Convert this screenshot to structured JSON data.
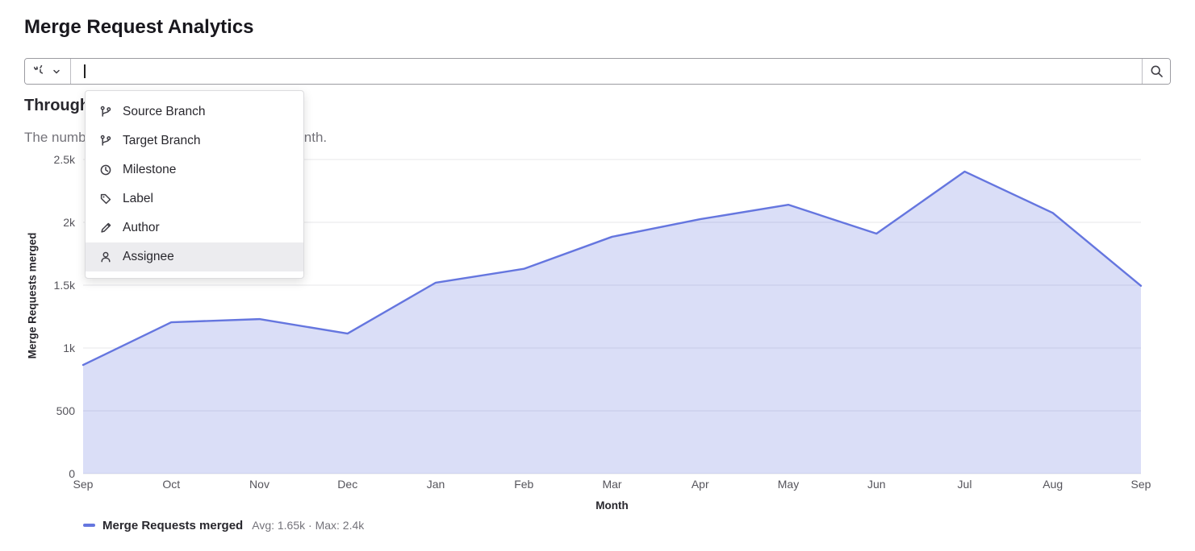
{
  "page": {
    "title": "Merge Request Analytics"
  },
  "filter_bar": {
    "input_value": "",
    "input_placeholder": "",
    "icons": {
      "history": "history-icon",
      "chevron": "chevron-down-icon",
      "search": "search-icon"
    }
  },
  "filter_dropdown": {
    "items": [
      {
        "label": "Source Branch",
        "icon": "branch-icon",
        "highlighted": false
      },
      {
        "label": "Target Branch",
        "icon": "branch-icon",
        "highlighted": false
      },
      {
        "label": "Milestone",
        "icon": "clock-icon",
        "highlighted": false
      },
      {
        "label": "Label",
        "icon": "label-icon",
        "highlighted": false
      },
      {
        "label": "Author",
        "icon": "pencil-icon",
        "highlighted": false
      },
      {
        "label": "Assignee",
        "icon": "user-icon",
        "highlighted": true
      }
    ]
  },
  "section": {
    "heading": "Throughput",
    "description": "The number of merge requests merged by month."
  },
  "chart_data": {
    "type": "area",
    "title": "Throughput",
    "x": [
      "Sep",
      "Oct",
      "Nov",
      "Dec",
      "Jan",
      "Feb",
      "Mar",
      "Apr",
      "May",
      "Jun",
      "Jul",
      "Aug",
      "Sep"
    ],
    "series": [
      {
        "name": "Merge Requests merged",
        "values": [
          865,
          1205,
          1230,
          1115,
          1520,
          1630,
          1885,
          2025,
          2140,
          1910,
          2404,
          2075,
          1495
        ]
      }
    ],
    "xlabel": "Month",
    "ylabel": "Merge Requests merged",
    "ylim": [
      0,
      2500
    ],
    "yticks": [
      0,
      500,
      1000,
      1500,
      2000,
      2500
    ],
    "ytick_labels": [
      "0",
      "500",
      "1k",
      "1.5k",
      "2k",
      "2.5k"
    ],
    "grid": true,
    "legend": {
      "label": "Merge Requests merged",
      "stats": "Avg: 1.65k · Max: 2.4k",
      "position": "bottom-left"
    },
    "line_color": "#6576df",
    "fill_color": "rgba(101,118,223,0.24)"
  }
}
